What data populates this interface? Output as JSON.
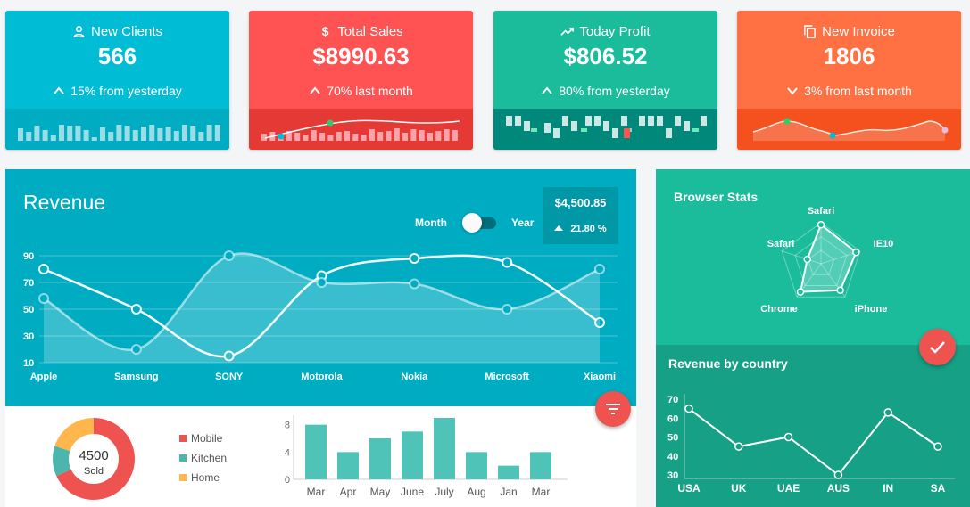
{
  "stats": [
    {
      "id": "clients",
      "title": "New Clients",
      "value": "566",
      "change": "15% from yesterday",
      "direction": "up",
      "color": "#00bcd4",
      "bottom_color": "#00acc1",
      "icon": "person-icon"
    },
    {
      "id": "sales",
      "title": "Total Sales",
      "value": "$8990.63",
      "change": "70% last month",
      "direction": "up",
      "color": "#ff5252",
      "bottom_color": "#e53935",
      "icon": "dollar-icon"
    },
    {
      "id": "profit",
      "title": "Today Profit",
      "value": "$806.52",
      "change": "80% from yesterday",
      "direction": "up",
      "color": "#1abc9c",
      "bottom_color": "#00897b",
      "icon": "trending-up-icon"
    },
    {
      "id": "invoice",
      "title": "New Invoice",
      "value": "1806",
      "change": "3% from last month",
      "direction": "down",
      "color": "#ff7043",
      "bottom_color": "#f4511e",
      "icon": "copy-icon"
    }
  ],
  "revenue": {
    "title": "Revenue",
    "toggle_left": "Month",
    "toggle_right": "Year",
    "total": "$4,500.85",
    "total_change": "21.80 %"
  },
  "browser_stats": {
    "title": "Browser Stats",
    "labels": [
      "Safari",
      "IE10",
      "iPhone",
      "Chrome",
      "Safari"
    ]
  },
  "country": {
    "title": "Revenue by country"
  },
  "donut": {
    "center_value": "4500",
    "center_label": "Sold",
    "legend": [
      {
        "label": "Mobile",
        "color": "#ef5350"
      },
      {
        "label": "Kitchen",
        "color": "#4db6ac"
      },
      {
        "label": "Home",
        "color": "#ffb74d"
      }
    ]
  },
  "chart_data": [
    {
      "type": "line",
      "title": "Revenue",
      "categories": [
        "Apple",
        "Samsung",
        "SONY",
        "Motorola",
        "Nokia",
        "Microsoft",
        "Xiaomi"
      ],
      "ylim": [
        10,
        90
      ],
      "yticks": [
        10,
        30,
        50,
        70,
        90
      ],
      "series": [
        {
          "values": [
            80,
            50,
            15,
            75,
            88,
            85,
            40
          ]
        },
        {
          "values": [
            58,
            20,
            90,
            70,
            69,
            50,
            80
          ]
        }
      ]
    },
    {
      "type": "line",
      "title": "Revenue by country",
      "categories": [
        "USA",
        "UK",
        "UAE",
        "AUS",
        "IN",
        "SA"
      ],
      "ylim": [
        30,
        70
      ],
      "yticks": [
        30,
        40,
        50,
        60,
        70
      ],
      "series": [
        {
          "values": [
            65,
            45,
            50,
            30,
            63,
            45
          ]
        }
      ]
    },
    {
      "type": "pie",
      "categories": [
        "Mobile",
        "Kitchen",
        "Home"
      ],
      "values": [
        68,
        12,
        20
      ]
    },
    {
      "type": "bar",
      "categories": [
        "Mar",
        "Apr",
        "May",
        "June",
        "July",
        "Aug",
        "Jan",
        "Mar"
      ],
      "values": [
        8,
        4,
        6,
        7,
        9,
        4,
        2,
        4
      ],
      "ylim": [
        0,
        9
      ],
      "yticks": [
        0,
        4,
        8
      ]
    }
  ]
}
